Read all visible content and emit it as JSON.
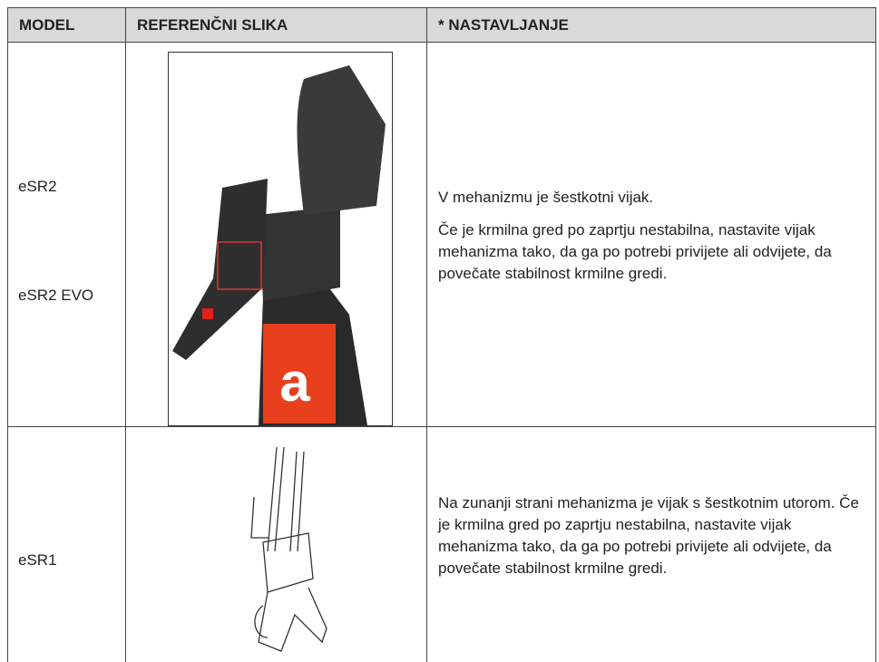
{
  "table": {
    "header": [
      "MODEL",
      "REFERENČNI SLIKA",
      "* NASTAVLJANJE"
    ],
    "rows": [
      {
        "models": [
          "eSR2",
          "eSR2 EVO"
        ],
        "text": [
          "V mehanizmu je šestkotni vijak.",
          "Če je krmilna gred po zaprtju nestabilna, nastavite vijak mehanizma tako, da ga po potrebi privijete ali odvijete, da povečate stabilnost krmilne gredi."
        ]
      },
      {
        "models": [
          "eSR1"
        ],
        "text": [
          "Na zunanji strani mehanizma je vijak s šestkotnim utorom. Če je krmilna gred po zaprtju nestabilna, nastavite vijak mehanizma tako, da ga po potrebi privijete ali odvijete, da povečate stabilnost krmilne gredi."
        ]
      }
    ]
  }
}
